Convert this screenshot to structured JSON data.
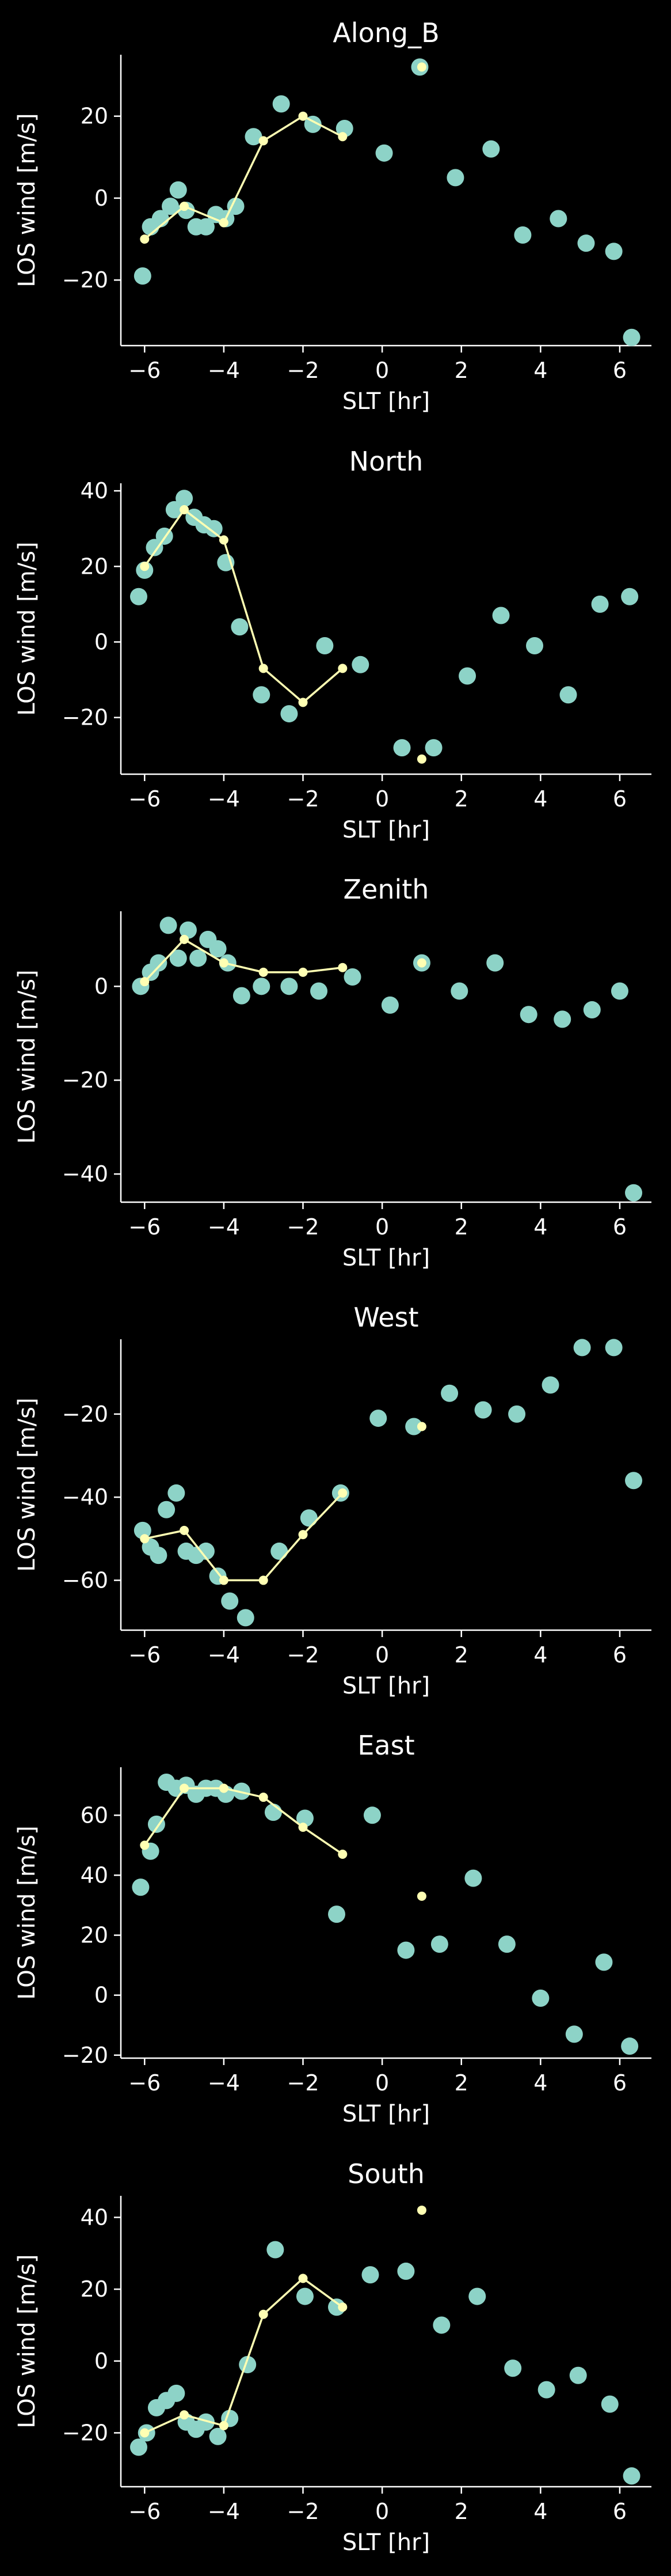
{
  "colors": {
    "background": "#000000",
    "axes": "#ffffff",
    "scatter_series": "#8dd3c7",
    "line_series": "#ffffb3"
  },
  "chart_data": [
    {
      "type": "scatter",
      "title": "Along_B",
      "xlabel": "SLT [hr]",
      "ylabel": "LOS wind [m/s]",
      "xlim": [
        -6.6,
        6.8
      ],
      "ylim": [
        -36,
        35
      ],
      "xticks": [
        -6,
        -4,
        -2,
        0,
        2,
        4,
        6
      ],
      "yticks": [
        -20,
        0,
        20
      ],
      "grid": false,
      "series": [
        {
          "style": "scatter",
          "points": [
            [
              -6.05,
              -19
            ],
            [
              -5.85,
              -7
            ],
            [
              -5.6,
              -5
            ],
            [
              -5.35,
              -2
            ],
            [
              -5.15,
              2
            ],
            [
              -4.95,
              -3
            ],
            [
              -4.7,
              -7
            ],
            [
              -4.45,
              -7
            ],
            [
              -4.2,
              -4
            ],
            [
              -3.95,
              -5
            ],
            [
              -3.7,
              -2
            ],
            [
              -3.25,
              15
            ],
            [
              -2.55,
              23
            ],
            [
              -1.75,
              18
            ],
            [
              -0.95,
              17
            ],
            [
              0.05,
              11
            ],
            [
              0.95,
              32
            ],
            [
              1.85,
              5
            ],
            [
              2.75,
              12
            ],
            [
              3.55,
              -9
            ],
            [
              4.45,
              -5
            ],
            [
              5.15,
              -11
            ],
            [
              5.85,
              -13
            ],
            [
              6.3,
              -34
            ]
          ]
        },
        {
          "style": "line",
          "points": [
            [
              -6.0,
              -10
            ],
            [
              -5.0,
              -2
            ],
            [
              -4.0,
              -6
            ],
            [
              -3.0,
              14
            ],
            [
              -2.0,
              20
            ],
            [
              -1.0,
              15
            ]
          ]
        },
        {
          "style": "marker",
          "points": [
            [
              1.0,
              32
            ]
          ]
        }
      ]
    },
    {
      "type": "scatter",
      "title": "North",
      "xlabel": "SLT [hr]",
      "ylabel": "LOS wind [m/s]",
      "xlim": [
        -6.6,
        6.8
      ],
      "ylim": [
        -35,
        42
      ],
      "xticks": [
        -6,
        -4,
        -2,
        0,
        2,
        4,
        6
      ],
      "yticks": [
        -20,
        0,
        20,
        40
      ],
      "grid": false,
      "series": [
        {
          "style": "scatter",
          "points": [
            [
              -6.15,
              12
            ],
            [
              -6.0,
              19
            ],
            [
              -5.75,
              25
            ],
            [
              -5.5,
              28
            ],
            [
              -5.25,
              35
            ],
            [
              -5.0,
              38
            ],
            [
              -4.75,
              33
            ],
            [
              -4.5,
              31
            ],
            [
              -4.25,
              30
            ],
            [
              -3.95,
              21
            ],
            [
              -3.6,
              4
            ],
            [
              -3.05,
              -14
            ],
            [
              -2.35,
              -19
            ],
            [
              -1.45,
              -1
            ],
            [
              -0.55,
              -6
            ],
            [
              0.5,
              -28
            ],
            [
              1.3,
              -28
            ],
            [
              2.15,
              -9
            ],
            [
              3.0,
              7
            ],
            [
              3.85,
              -1
            ],
            [
              4.7,
              -14
            ],
            [
              5.5,
              10
            ],
            [
              6.25,
              12
            ]
          ]
        },
        {
          "style": "line",
          "points": [
            [
              -6.0,
              20
            ],
            [
              -5.0,
              35
            ],
            [
              -4.0,
              27
            ],
            [
              -3.0,
              -7
            ],
            [
              -2.0,
              -16
            ],
            [
              -1.0,
              -7
            ]
          ]
        },
        {
          "style": "marker",
          "points": [
            [
              1.0,
              -31
            ]
          ]
        }
      ]
    },
    {
      "type": "scatter",
      "title": "Zenith",
      "xlabel": "SLT [hr]",
      "ylabel": "LOS wind [m/s]",
      "xlim": [
        -6.6,
        6.8
      ],
      "ylim": [
        -46,
        16
      ],
      "xticks": [
        -6,
        -4,
        -2,
        0,
        2,
        4,
        6
      ],
      "yticks": [
        -40,
        -20,
        0
      ],
      "grid": false,
      "series": [
        {
          "style": "scatter",
          "points": [
            [
              -6.1,
              0
            ],
            [
              -5.85,
              3
            ],
            [
              -5.65,
              5
            ],
            [
              -5.4,
              13
            ],
            [
              -5.15,
              6
            ],
            [
              -4.9,
              12
            ],
            [
              -4.65,
              6
            ],
            [
              -4.4,
              10
            ],
            [
              -4.15,
              8
            ],
            [
              -3.9,
              5
            ],
            [
              -3.55,
              -2
            ],
            [
              -3.05,
              0
            ],
            [
              -2.35,
              0
            ],
            [
              -1.6,
              -1
            ],
            [
              -0.75,
              2
            ],
            [
              0.2,
              -4
            ],
            [
              1.0,
              5
            ],
            [
              1.95,
              -1
            ],
            [
              2.85,
              5
            ],
            [
              3.7,
              -6
            ],
            [
              4.55,
              -7
            ],
            [
              5.3,
              -5
            ],
            [
              6.0,
              -1
            ],
            [
              6.35,
              -44
            ]
          ]
        },
        {
          "style": "line",
          "points": [
            [
              -6.0,
              1
            ],
            [
              -5.0,
              10
            ],
            [
              -4.0,
              5
            ],
            [
              -3.0,
              3
            ],
            [
              -2.0,
              3
            ],
            [
              -1.0,
              4
            ]
          ]
        },
        {
          "style": "marker",
          "points": [
            [
              1.0,
              5
            ]
          ]
        }
      ]
    },
    {
      "type": "scatter",
      "title": "West",
      "xlabel": "SLT [hr]",
      "ylabel": "LOS wind [m/s]",
      "xlim": [
        -6.6,
        6.8
      ],
      "ylim": [
        -72,
        -2
      ],
      "xticks": [
        -6,
        -4,
        -2,
        0,
        2,
        4,
        6
      ],
      "yticks": [
        -60,
        -40,
        -20
      ],
      "grid": false,
      "series": [
        {
          "style": "scatter",
          "points": [
            [
              -6.05,
              -48
            ],
            [
              -5.85,
              -52
            ],
            [
              -5.65,
              -54
            ],
            [
              -5.45,
              -43
            ],
            [
              -5.2,
              -39
            ],
            [
              -4.95,
              -53
            ],
            [
              -4.7,
              -54
            ],
            [
              -4.45,
              -53
            ],
            [
              -4.15,
              -59
            ],
            [
              -3.85,
              -65
            ],
            [
              -3.45,
              -69
            ],
            [
              -2.6,
              -53
            ],
            [
              -1.85,
              -45
            ],
            [
              -1.05,
              -39
            ],
            [
              -0.1,
              -21
            ],
            [
              0.8,
              -23
            ],
            [
              1.7,
              -15
            ],
            [
              2.55,
              -19
            ],
            [
              3.4,
              -20
            ],
            [
              4.25,
              -13
            ],
            [
              5.05,
              -4
            ],
            [
              5.85,
              -4
            ],
            [
              6.35,
              -36
            ]
          ]
        },
        {
          "style": "line",
          "points": [
            [
              -6.0,
              -50
            ],
            [
              -5.0,
              -48
            ],
            [
              -4.0,
              -60
            ],
            [
              -3.0,
              -60
            ],
            [
              -2.0,
              -49
            ],
            [
              -1.0,
              -39
            ]
          ]
        },
        {
          "style": "marker",
          "points": [
            [
              1.0,
              -23
            ]
          ]
        }
      ]
    },
    {
      "type": "scatter",
      "title": "East",
      "xlabel": "SLT [hr]",
      "ylabel": "LOS wind [m/s]",
      "xlim": [
        -6.6,
        6.8
      ],
      "ylim": [
        -21,
        76
      ],
      "xticks": [
        -6,
        -4,
        -2,
        0,
        2,
        4,
        6
      ],
      "yticks": [
        -20,
        0,
        20,
        40,
        60
      ],
      "grid": false,
      "series": [
        {
          "style": "scatter",
          "points": [
            [
              -6.1,
              36
            ],
            [
              -5.85,
              48
            ],
            [
              -5.7,
              57
            ],
            [
              -5.45,
              71
            ],
            [
              -5.2,
              69
            ],
            [
              -4.95,
              70
            ],
            [
              -4.7,
              67
            ],
            [
              -4.45,
              69
            ],
            [
              -4.2,
              69
            ],
            [
              -3.95,
              67
            ],
            [
              -3.55,
              68
            ],
            [
              -2.75,
              61
            ],
            [
              -1.95,
              59
            ],
            [
              -1.15,
              27
            ],
            [
              -0.25,
              60
            ],
            [
              0.6,
              15
            ],
            [
              1.45,
              17
            ],
            [
              2.3,
              39
            ],
            [
              3.15,
              17
            ],
            [
              4.0,
              -1
            ],
            [
              4.85,
              -13
            ],
            [
              5.6,
              11
            ],
            [
              6.25,
              -17
            ]
          ]
        },
        {
          "style": "line",
          "points": [
            [
              -6.0,
              50
            ],
            [
              -5.0,
              69
            ],
            [
              -4.0,
              69
            ],
            [
              -3.0,
              66
            ],
            [
              -2.0,
              56
            ],
            [
              -1.0,
              47
            ]
          ]
        },
        {
          "style": "marker",
          "points": [
            [
              1.0,
              33
            ]
          ]
        }
      ]
    },
    {
      "type": "scatter",
      "title": "South",
      "xlabel": "SLT [hr]",
      "ylabel": "LOS wind [m/s]",
      "xlim": [
        -6.6,
        6.8
      ],
      "ylim": [
        -35,
        46
      ],
      "xticks": [
        -6,
        -4,
        -2,
        0,
        2,
        4,
        6
      ],
      "yticks": [
        -20,
        0,
        20,
        40
      ],
      "grid": false,
      "series": [
        {
          "style": "scatter",
          "points": [
            [
              -6.15,
              -24
            ],
            [
              -5.95,
              -20
            ],
            [
              -5.7,
              -13
            ],
            [
              -5.45,
              -11
            ],
            [
              -5.2,
              -9
            ],
            [
              -4.95,
              -17
            ],
            [
              -4.7,
              -19
            ],
            [
              -4.45,
              -17
            ],
            [
              -4.15,
              -21
            ],
            [
              -3.85,
              -16
            ],
            [
              -3.4,
              -1
            ],
            [
              -2.7,
              31
            ],
            [
              -1.95,
              18
            ],
            [
              -1.15,
              15
            ],
            [
              -0.3,
              24
            ],
            [
              0.6,
              25
            ],
            [
              1.5,
              10
            ],
            [
              2.4,
              18
            ],
            [
              3.3,
              -2
            ],
            [
              4.15,
              -8
            ],
            [
              4.95,
              -4
            ],
            [
              5.75,
              -12
            ],
            [
              6.3,
              -32
            ]
          ]
        },
        {
          "style": "line",
          "points": [
            [
              -6.0,
              -20
            ],
            [
              -5.0,
              -15
            ],
            [
              -4.0,
              -18
            ],
            [
              -3.0,
              13
            ],
            [
              -2.0,
              23
            ],
            [
              -1.0,
              15
            ]
          ]
        },
        {
          "style": "marker",
          "points": [
            [
              1.0,
              42
            ]
          ]
        }
      ]
    }
  ]
}
